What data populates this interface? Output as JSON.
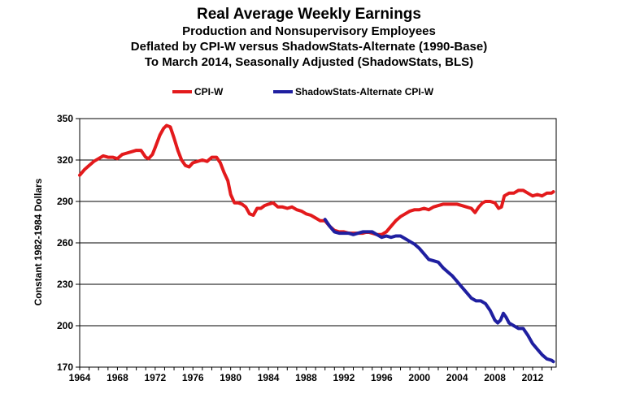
{
  "chart_data": {
    "type": "line",
    "title": "Real Average Weekly Earnings",
    "subtitle_lines": [
      "Production and Nonsupervisory Employees",
      "Deflated by CPI-W versus ShadowStats-Alternate (1990-Base)",
      "To March 2014, Seasonally Adjusted (ShadowStats, BLS)"
    ],
    "xlabel": "",
    "ylabel": "Constant 1982-1984 Dollars",
    "xlim": [
      1964,
      2014.5
    ],
    "ylim": [
      170,
      350
    ],
    "x_ticks": [
      1964,
      1968,
      1972,
      1976,
      1980,
      1984,
      1988,
      1992,
      1996,
      2000,
      2004,
      2008,
      2012
    ],
    "y_ticks": [
      170,
      200,
      230,
      260,
      290,
      320,
      350
    ],
    "grid": "horizontal",
    "legend_position": "top",
    "series": [
      {
        "name": "CPI-W",
        "color": "#e31a1c",
        "points": [
          [
            1964.0,
            309
          ],
          [
            1964.5,
            313
          ],
          [
            1965.0,
            316
          ],
          [
            1965.5,
            319
          ],
          [
            1966.0,
            321
          ],
          [
            1966.5,
            323
          ],
          [
            1967.0,
            322
          ],
          [
            1967.5,
            322
          ],
          [
            1968.0,
            321
          ],
          [
            1968.5,
            324
          ],
          [
            1969.0,
            325
          ],
          [
            1969.5,
            326
          ],
          [
            1970.0,
            327
          ],
          [
            1970.5,
            327
          ],
          [
            1971.0,
            322
          ],
          [
            1971.3,
            321
          ],
          [
            1971.7,
            324
          ],
          [
            1972.0,
            329
          ],
          [
            1972.5,
            338
          ],
          [
            1972.9,
            343
          ],
          [
            1973.2,
            345
          ],
          [
            1973.6,
            344
          ],
          [
            1974.0,
            336
          ],
          [
            1974.4,
            327
          ],
          [
            1974.8,
            320
          ],
          [
            1975.2,
            316
          ],
          [
            1975.6,
            315
          ],
          [
            1976.0,
            318
          ],
          [
            1976.5,
            319
          ],
          [
            1977.0,
            320
          ],
          [
            1977.5,
            319
          ],
          [
            1978.0,
            322
          ],
          [
            1978.5,
            322
          ],
          [
            1978.9,
            318
          ],
          [
            1979.3,
            311
          ],
          [
            1979.7,
            305
          ],
          [
            1980.0,
            295
          ],
          [
            1980.4,
            289
          ],
          [
            1980.8,
            289
          ],
          [
            1981.2,
            288
          ],
          [
            1981.6,
            286
          ],
          [
            1982.0,
            281
          ],
          [
            1982.4,
            280
          ],
          [
            1982.8,
            285
          ],
          [
            1983.2,
            285
          ],
          [
            1983.6,
            287
          ],
          [
            1984.0,
            288
          ],
          [
            1984.5,
            289
          ],
          [
            1985.0,
            286
          ],
          [
            1985.5,
            286
          ],
          [
            1986.0,
            285
          ],
          [
            1986.5,
            286
          ],
          [
            1987.0,
            284
          ],
          [
            1987.5,
            283
          ],
          [
            1988.0,
            281
          ],
          [
            1988.5,
            280
          ],
          [
            1989.0,
            278
          ],
          [
            1989.5,
            276
          ],
          [
            1990.0,
            276
          ],
          [
            1990.5,
            272
          ],
          [
            1991.0,
            269
          ],
          [
            1991.5,
            268
          ],
          [
            1992.0,
            268
          ],
          [
            1992.5,
            267
          ],
          [
            1993.0,
            267
          ],
          [
            1993.5,
            267
          ],
          [
            1994.0,
            267
          ],
          [
            1994.5,
            268
          ],
          [
            1995.0,
            267
          ],
          [
            1995.5,
            266
          ],
          [
            1996.0,
            266
          ],
          [
            1996.5,
            268
          ],
          [
            1997.0,
            272
          ],
          [
            1997.5,
            276
          ],
          [
            1998.0,
            279
          ],
          [
            1998.5,
            281
          ],
          [
            1999.0,
            283
          ],
          [
            1999.5,
            284
          ],
          [
            2000.0,
            284
          ],
          [
            2000.5,
            285
          ],
          [
            2001.0,
            284
          ],
          [
            2001.5,
            286
          ],
          [
            2002.0,
            287
          ],
          [
            2002.5,
            288
          ],
          [
            2003.0,
            288
          ],
          [
            2003.5,
            288
          ],
          [
            2004.0,
            288
          ],
          [
            2004.5,
            287
          ],
          [
            2005.0,
            286
          ],
          [
            2005.5,
            285
          ],
          [
            2005.9,
            282
          ],
          [
            2006.3,
            286
          ],
          [
            2006.7,
            289
          ],
          [
            2007.0,
            290
          ],
          [
            2007.5,
            290
          ],
          [
            2008.0,
            289
          ],
          [
            2008.4,
            285
          ],
          [
            2008.7,
            286
          ],
          [
            2009.0,
            294
          ],
          [
            2009.5,
            296
          ],
          [
            2010.0,
            296
          ],
          [
            2010.5,
            298
          ],
          [
            2011.0,
            298
          ],
          [
            2011.5,
            296
          ],
          [
            2012.0,
            294
          ],
          [
            2012.5,
            295
          ],
          [
            2013.0,
            294
          ],
          [
            2013.5,
            296
          ],
          [
            2014.0,
            296
          ],
          [
            2014.2,
            297
          ]
        ]
      },
      {
        "name": "ShadowStats-Alternate CPI-W",
        "color": "#1f1fa0",
        "points": [
          [
            1990.0,
            277
          ],
          [
            1990.5,
            272
          ],
          [
            1991.0,
            268
          ],
          [
            1991.5,
            267
          ],
          [
            1992.0,
            267
          ],
          [
            1992.5,
            267
          ],
          [
            1993.0,
            266
          ],
          [
            1993.5,
            267
          ],
          [
            1994.0,
            268
          ],
          [
            1994.5,
            268
          ],
          [
            1995.0,
            268
          ],
          [
            1995.5,
            266
          ],
          [
            1996.0,
            264
          ],
          [
            1996.5,
            265
          ],
          [
            1997.0,
            264
          ],
          [
            1997.5,
            265
          ],
          [
            1998.0,
            265
          ],
          [
            1998.5,
            263
          ],
          [
            1999.0,
            261
          ],
          [
            1999.5,
            259
          ],
          [
            2000.0,
            256
          ],
          [
            2000.5,
            252
          ],
          [
            2001.0,
            248
          ],
          [
            2001.5,
            247
          ],
          [
            2002.0,
            246
          ],
          [
            2002.5,
            242
          ],
          [
            2003.0,
            239
          ],
          [
            2003.5,
            236
          ],
          [
            2004.0,
            232
          ],
          [
            2004.5,
            228
          ],
          [
            2005.0,
            224
          ],
          [
            2005.5,
            220
          ],
          [
            2006.0,
            218
          ],
          [
            2006.5,
            218
          ],
          [
            2007.0,
            216
          ],
          [
            2007.5,
            211
          ],
          [
            2008.0,
            204
          ],
          [
            2008.3,
            202
          ],
          [
            2008.6,
            204
          ],
          [
            2008.9,
            209
          ],
          [
            2009.2,
            206
          ],
          [
            2009.5,
            202
          ],
          [
            2010.0,
            200
          ],
          [
            2010.5,
            198
          ],
          [
            2011.0,
            198
          ],
          [
            2011.5,
            193
          ],
          [
            2012.0,
            187
          ],
          [
            2012.5,
            183
          ],
          [
            2013.0,
            179
          ],
          [
            2013.5,
            176
          ],
          [
            2014.0,
            175
          ],
          [
            2014.2,
            174
          ]
        ]
      }
    ]
  }
}
